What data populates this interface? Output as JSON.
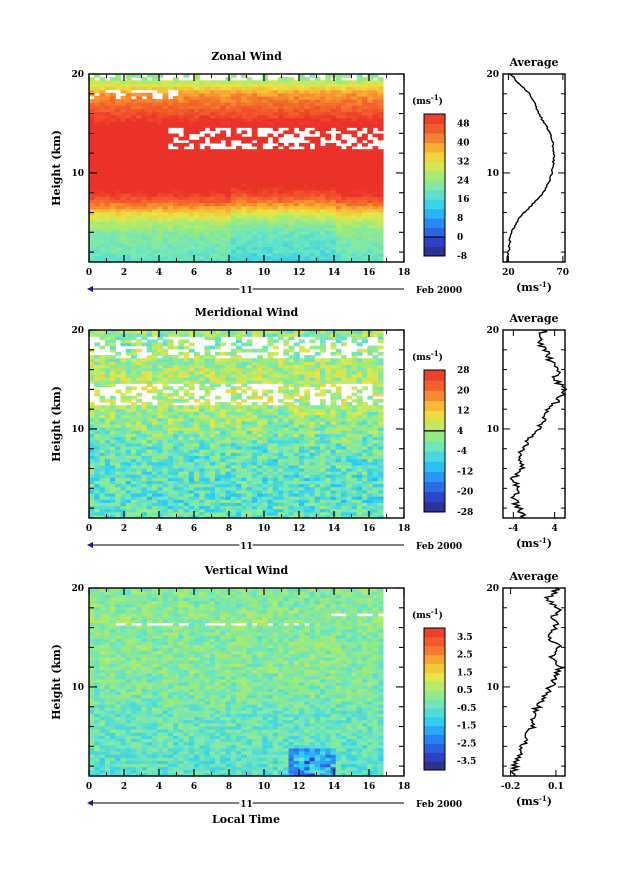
{
  "figure": {
    "date_label": "Feb 2000",
    "day_label": "11",
    "xlabel": "Local Time"
  },
  "chart_data": [
    {
      "type": "heatmap",
      "title": "Zonal Wind",
      "ylabel": "Height (km)",
      "xlim": [
        0,
        18
      ],
      "ylim": [
        1,
        20
      ],
      "x_ticks": [
        0,
        2,
        4,
        6,
        8,
        10,
        12,
        14,
        16,
        18
      ],
      "y_ticks": [
        10,
        20
      ],
      "data_extent_x": [
        0,
        16.8
      ],
      "colorbar": {
        "unit_label": "(ms",
        "unit_exp": "-1",
        "levels": [
          -8,
          -4,
          0,
          4,
          8,
          12,
          16,
          20,
          24,
          28,
          32,
          36,
          40,
          44,
          48,
          52
        ],
        "tick_labels": [
          48,
          40,
          32,
          24,
          16,
          8,
          0,
          -8
        ],
        "line_at": 0
      },
      "field": {
        "profile_heights_km": [
          1,
          2,
          3,
          4,
          5,
          6,
          7,
          8,
          9,
          10,
          11,
          12,
          13,
          14,
          15,
          16,
          17,
          18,
          19,
          20
        ],
        "profile_values": [
          18,
          20,
          21,
          23,
          27,
          34,
          44,
          52,
          57,
          60,
          61,
          62,
          61,
          59,
          53,
          48,
          44,
          40,
          30,
          22
        ],
        "gaps": [
          [
            4.5,
            16.8,
            12.5,
            14.5
          ],
          [
            0,
            5,
            17.4,
            18.3
          ],
          [
            0,
            16.8,
            19.5,
            20
          ]
        ]
      },
      "average": {
        "title": "Average",
        "xlabel": "(ms",
        "xlabel_exp": "-1",
        "xlim": [
          15,
          72
        ],
        "x_ticks": [
          20,
          70
        ],
        "y_ticks": [
          10,
          20
        ],
        "heights": [
          1,
          2,
          3,
          4,
          5,
          6,
          7,
          8,
          9,
          10,
          11,
          12,
          13,
          14,
          15,
          16,
          17,
          18,
          19,
          20
        ],
        "values": [
          18,
          20,
          21,
          23,
          27,
          34,
          44,
          52,
          57,
          60,
          61,
          62,
          61,
          59,
          53,
          48,
          44,
          40,
          30,
          22
        ]
      }
    },
    {
      "type": "heatmap",
      "title": "Meridional Wind",
      "ylabel": "Height (km)",
      "xlim": [
        0,
        18
      ],
      "ylim": [
        1,
        20
      ],
      "x_ticks": [
        0,
        2,
        4,
        6,
        8,
        10,
        12,
        14,
        16,
        18
      ],
      "y_ticks": [
        10,
        20
      ],
      "data_extent_x": [
        0,
        16.8
      ],
      "colorbar": {
        "unit_label": "(ms",
        "unit_exp": "-1",
        "levels": [
          -28,
          -24,
          -20,
          -16,
          -12,
          -8,
          -4,
          0,
          4,
          8,
          12,
          16,
          20,
          24,
          28
        ],
        "tick_labels": [
          28,
          20,
          12,
          4,
          -4,
          -12,
          -20,
          -28
        ],
        "line_at": 4
      },
      "field": {
        "profile_heights_km": [
          1,
          2,
          3,
          4,
          5,
          6,
          7,
          8,
          9,
          10,
          11,
          12,
          13,
          14,
          15,
          16,
          17,
          18,
          19,
          20
        ],
        "profile_values": [
          -2,
          -3,
          -4,
          -3,
          -4,
          -2,
          -3,
          -2,
          -1,
          1,
          2,
          3,
          5,
          6,
          4,
          5,
          3,
          2,
          1,
          2
        ],
        "gaps": [
          [
            0,
            16.8,
            12.5,
            14.5
          ],
          [
            0,
            16.8,
            17,
            19.5
          ]
        ]
      },
      "average": {
        "title": "Average",
        "xlabel": "(ms",
        "xlabel_exp": "-1",
        "xlim": [
          -6,
          6
        ],
        "x_ticks": [
          -4,
          4
        ],
        "y_ticks": [
          10,
          20
        ],
        "heights": [
          1,
          2,
          3,
          4,
          5,
          6,
          7,
          8,
          9,
          10,
          11,
          12,
          13,
          14,
          15,
          16,
          17,
          18,
          19,
          20
        ],
        "values": [
          -2,
          -3,
          -4,
          -3,
          -4,
          -2,
          -3,
          -2,
          -1,
          1,
          2,
          3,
          5,
          6,
          4,
          5,
          3,
          2,
          1,
          2
        ]
      }
    },
    {
      "type": "heatmap",
      "title": "Vertical Wind",
      "ylabel": "Height (km)",
      "xlim": [
        0,
        18
      ],
      "ylim": [
        1,
        20
      ],
      "x_ticks": [
        0,
        2,
        4,
        6,
        8,
        10,
        12,
        14,
        16,
        18
      ],
      "y_ticks": [
        10,
        20
      ],
      "data_extent_x": [
        0,
        16.8
      ],
      "colorbar": {
        "unit_label": "(ms",
        "unit_exp": "-1",
        "levels": [
          -4,
          -3.5,
          -3,
          -2.5,
          -2,
          -1.5,
          -1,
          -0.5,
          0,
          0.5,
          1,
          1.5,
          2,
          2.5,
          3,
          3.5,
          4
        ],
        "tick_labels": [
          3.5,
          2.5,
          1.5,
          0.5,
          -0.5,
          -1.5,
          -2.5,
          -3.5
        ],
        "line_at": null
      },
      "field": {
        "profile_heights_km": [
          1,
          2,
          3,
          4,
          5,
          6,
          7,
          8,
          9,
          10,
          11,
          12,
          13,
          14,
          15,
          16,
          17,
          18,
          19,
          20
        ],
        "profile_values": [
          -0.6,
          -0.5,
          -0.5,
          -0.4,
          -0.4,
          -0.3,
          -0.3,
          -0.2,
          -0.1,
          0,
          0,
          0.1,
          0.1,
          0.1,
          0,
          0.1,
          0.2,
          0.1,
          0,
          0.1
        ],
        "gaps": [
          [
            0.5,
            13,
            16.1,
            16.6
          ],
          [
            13.5,
            16.8,
            17.2,
            17.6
          ]
        ]
      },
      "average": {
        "title": "Average",
        "xlabel": "(ms",
        "xlabel_exp": "-1",
        "xlim": [
          -0.25,
          0.16
        ],
        "x_ticks": [
          -0.2,
          0.1
        ],
        "y_ticks": [
          10,
          20
        ],
        "heights": [
          1,
          2,
          3,
          4,
          5,
          6,
          7,
          8,
          9,
          10,
          11,
          12,
          13,
          14,
          15,
          16,
          17,
          18,
          19,
          20
        ],
        "values": [
          -0.18,
          -0.17,
          -0.15,
          -0.12,
          -0.1,
          -0.05,
          -0.06,
          -0.02,
          0.03,
          0.06,
          0.1,
          0.13,
          0.07,
          0.12,
          0.05,
          0.1,
          0.08,
          0.12,
          0.04,
          0.12
        ]
      }
    }
  ]
}
